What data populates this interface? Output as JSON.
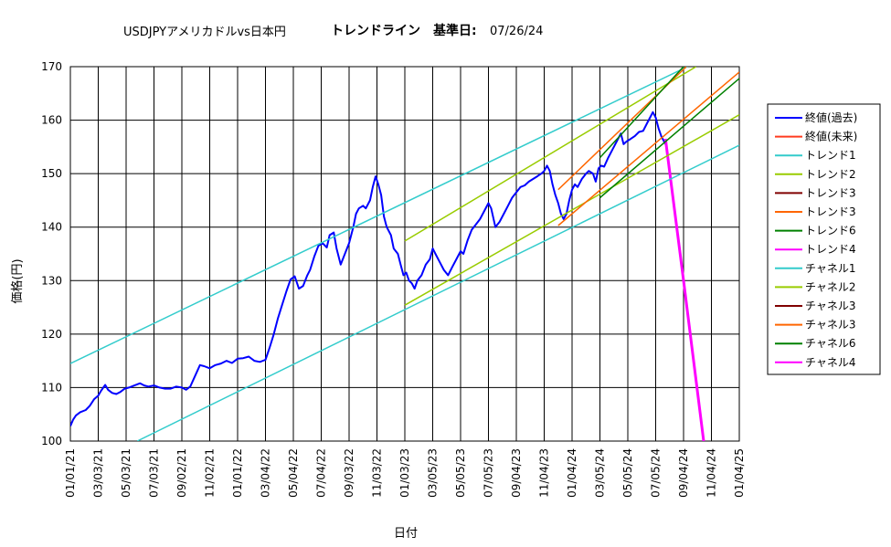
{
  "chart_data": {
    "type": "line",
    "title": "USDJPYアメリカドルvs日本円",
    "subtitle_label": "トレンドライン",
    "subtitle_base_label": "基準日:",
    "subtitle_base_date": "07/26/24",
    "xlabel": "日付",
    "ylabel": "価格(円)",
    "ylim": [
      100,
      170
    ],
    "yticks": [
      "100",
      "110",
      "120",
      "130",
      "140",
      "150",
      "160",
      "170"
    ],
    "xticks": [
      "01/01/21",
      "03/03/21",
      "05/03/21",
      "07/03/21",
      "09/02/21",
      "11/02/21",
      "01/01/22",
      "03/04/22",
      "05/04/22",
      "07/04/22",
      "09/03/22",
      "11/03/22",
      "01/03/23",
      "03/05/23",
      "05/05/23",
      "07/05/23",
      "09/04/23",
      "11/04/23",
      "01/04/24",
      "03/05/24",
      "05/05/24",
      "07/05/24",
      "09/04/24",
      "11/04/24",
      "01/04/25"
    ],
    "grid": true,
    "legend_position": "right",
    "series": [
      {
        "name": "終値(過去)",
        "color": "#0000ff",
        "width": 2,
        "points": [
          [
            0,
            102.8
          ],
          [
            0.1,
            104.0
          ],
          [
            0.2,
            104.8
          ],
          [
            0.35,
            105.4
          ],
          [
            0.55,
            105.8
          ],
          [
            0.7,
            106.6
          ],
          [
            0.85,
            107.8
          ],
          [
            1.0,
            108.5
          ],
          [
            1.1,
            109.4
          ],
          [
            1.25,
            110.5
          ],
          [
            1.35,
            109.6
          ],
          [
            1.5,
            109.0
          ],
          [
            1.65,
            108.8
          ],
          [
            1.8,
            109.2
          ],
          [
            1.95,
            109.8
          ],
          [
            2.1,
            110.0
          ],
          [
            2.3,
            110.4
          ],
          [
            2.5,
            110.8
          ],
          [
            2.65,
            110.4
          ],
          [
            2.8,
            110.2
          ],
          [
            3.0,
            110.4
          ],
          [
            3.2,
            110.0
          ],
          [
            3.4,
            109.8
          ],
          [
            3.6,
            109.8
          ],
          [
            3.8,
            110.2
          ],
          [
            4.0,
            110.0
          ],
          [
            4.15,
            109.6
          ],
          [
            4.3,
            110.2
          ],
          [
            4.5,
            112.5
          ],
          [
            4.65,
            114.2
          ],
          [
            4.8,
            114.0
          ],
          [
            5.0,
            113.6
          ],
          [
            5.2,
            114.2
          ],
          [
            5.4,
            114.5
          ],
          [
            5.6,
            115.0
          ],
          [
            5.8,
            114.6
          ],
          [
            6.0,
            115.4
          ],
          [
            6.2,
            115.5
          ],
          [
            6.4,
            115.8
          ],
          [
            6.6,
            115.0
          ],
          [
            6.8,
            114.8
          ],
          [
            7.0,
            115.2
          ],
          [
            7.15,
            117.5
          ],
          [
            7.3,
            120.0
          ],
          [
            7.45,
            123.0
          ],
          [
            7.6,
            125.5
          ],
          [
            7.75,
            128.0
          ],
          [
            7.9,
            130.2
          ],
          [
            8.05,
            130.8
          ],
          [
            8.2,
            128.5
          ],
          [
            8.35,
            129.0
          ],
          [
            8.5,
            131.0
          ],
          [
            8.6,
            132.0
          ],
          [
            8.75,
            134.5
          ],
          [
            8.9,
            136.5
          ],
          [
            9.05,
            137.0
          ],
          [
            9.2,
            136.2
          ],
          [
            9.3,
            138.5
          ],
          [
            9.45,
            139.0
          ],
          [
            9.55,
            136.0
          ],
          [
            9.7,
            133.0
          ],
          [
            9.85,
            135.0
          ],
          [
            10.0,
            137.0
          ],
          [
            10.15,
            140.0
          ],
          [
            10.25,
            142.5
          ],
          [
            10.35,
            143.5
          ],
          [
            10.5,
            144.0
          ],
          [
            10.6,
            143.5
          ],
          [
            10.75,
            145.0
          ],
          [
            10.85,
            147.5
          ],
          [
            10.95,
            149.5
          ],
          [
            11.05,
            148.0
          ],
          [
            11.15,
            146.0
          ],
          [
            11.25,
            142.0
          ],
          [
            11.35,
            140.0
          ],
          [
            11.5,
            138.5
          ],
          [
            11.6,
            136.0
          ],
          [
            11.75,
            135.0
          ],
          [
            11.85,
            133.0
          ],
          [
            11.95,
            131.0
          ],
          [
            12.05,
            131.5
          ],
          [
            12.15,
            130.0
          ],
          [
            12.25,
            129.5
          ],
          [
            12.35,
            128.5
          ],
          [
            12.45,
            130.0
          ],
          [
            12.6,
            131.0
          ],
          [
            12.75,
            133.0
          ],
          [
            12.9,
            134.0
          ],
          [
            13.0,
            136.0
          ],
          [
            13.1,
            135.0
          ],
          [
            13.25,
            133.5
          ],
          [
            13.4,
            132.0
          ],
          [
            13.55,
            131.0
          ],
          [
            13.7,
            132.5
          ],
          [
            13.85,
            134.0
          ],
          [
            14.0,
            135.5
          ],
          [
            14.1,
            135.0
          ],
          [
            14.25,
            137.5
          ],
          [
            14.4,
            139.5
          ],
          [
            14.55,
            140.5
          ],
          [
            14.7,
            141.5
          ],
          [
            14.85,
            143.0
          ],
          [
            15.0,
            144.5
          ],
          [
            15.1,
            143.5
          ],
          [
            15.25,
            140.0
          ],
          [
            15.4,
            141.0
          ],
          [
            15.55,
            142.5
          ],
          [
            15.7,
            144.0
          ],
          [
            15.85,
            145.5
          ],
          [
            16.0,
            146.5
          ],
          [
            16.15,
            147.5
          ],
          [
            16.3,
            147.8
          ],
          [
            16.45,
            148.5
          ],
          [
            16.6,
            149.0
          ],
          [
            16.75,
            149.5
          ],
          [
            16.9,
            150.0
          ],
          [
            17.0,
            150.5
          ],
          [
            17.1,
            151.5
          ],
          [
            17.2,
            150.5
          ],
          [
            17.3,
            148.0
          ],
          [
            17.4,
            146.0
          ],
          [
            17.5,
            144.5
          ],
          [
            17.6,
            142.5
          ],
          [
            17.7,
            141.5
          ],
          [
            17.8,
            142.5
          ],
          [
            17.9,
            145.0
          ],
          [
            18.0,
            147.0
          ],
          [
            18.1,
            148.0
          ],
          [
            18.2,
            147.5
          ],
          [
            18.35,
            149.0
          ],
          [
            18.5,
            150.0
          ],
          [
            18.6,
            150.5
          ],
          [
            18.75,
            150.0
          ],
          [
            18.85,
            148.5
          ],
          [
            18.95,
            151.0
          ],
          [
            19.05,
            151.5
          ],
          [
            19.15,
            151.3
          ],
          [
            19.3,
            153.0
          ],
          [
            19.45,
            154.5
          ],
          [
            19.6,
            156.0
          ],
          [
            19.75,
            157.5
          ],
          [
            19.85,
            155.5
          ],
          [
            19.95,
            156.0
          ],
          [
            20.1,
            156.5
          ],
          [
            20.25,
            157.0
          ],
          [
            20.4,
            157.8
          ],
          [
            20.55,
            158.0
          ],
          [
            20.7,
            159.5
          ],
          [
            20.8,
            160.5
          ],
          [
            20.9,
            161.5
          ],
          [
            21.0,
            160.5
          ],
          [
            21.1,
            158.5
          ],
          [
            21.2,
            157.0
          ],
          [
            21.3,
            156.0
          ],
          [
            21.35,
            155.5
          ]
        ]
      },
      {
        "name": "終値(未来)",
        "color": "#ff3b1f",
        "width": 1,
        "points": []
      },
      {
        "name": "トレンド1",
        "color": "#33cccc",
        "width": 1.5,
        "points": [
          [
            0,
            114.5
          ],
          [
            22.14,
            170
          ]
        ]
      },
      {
        "name": "トレンド2",
        "color": "#99cc00",
        "width": 1.5,
        "points": [
          [
            12.0,
            137.4
          ],
          [
            22.45,
            170
          ]
        ]
      },
      {
        "name": "トレンド3",
        "color": "#800000",
        "width": 1.5,
        "points": []
      },
      {
        "name": "トレンド3",
        "color": "#ff6600",
        "width": 1.5,
        "points": [
          [
            17.5,
            147.0
          ],
          [
            22.1,
            170
          ]
        ]
      },
      {
        "name": "トレンド6",
        "color": "#008000",
        "width": 1.5,
        "points": [
          [
            19.0,
            153.0
          ],
          [
            22.0,
            170
          ]
        ]
      },
      {
        "name": "トレンド4",
        "color": "#ff00ff",
        "width": 3,
        "points": [
          [
            21.35,
            156.5
          ],
          [
            22.0,
            130.0
          ],
          [
            22.72,
            100.0
          ]
        ]
      },
      {
        "name": "チャネル1",
        "color": "#33cccc",
        "width": 1.5,
        "points": [
          [
            2.4,
            100
          ],
          [
            24,
            155.3
          ]
        ]
      },
      {
        "name": "チャネル2",
        "color": "#99cc00",
        "width": 1.5,
        "points": [
          [
            12.0,
            125.4
          ],
          [
            24,
            161
          ]
        ]
      },
      {
        "name": "チャネル3",
        "color": "#800000",
        "width": 1.5,
        "points": []
      },
      {
        "name": "チャネル3",
        "color": "#ff6600",
        "width": 1.5,
        "points": [
          [
            17.5,
            140.3
          ],
          [
            24,
            169
          ]
        ]
      },
      {
        "name": "チャネル6",
        "color": "#008000",
        "width": 1.5,
        "points": [
          [
            19.0,
            145.5
          ],
          [
            24,
            167.8
          ]
        ]
      },
      {
        "name": "チャネル4",
        "color": "#ff00ff",
        "width": 1.5,
        "points": []
      }
    ]
  }
}
